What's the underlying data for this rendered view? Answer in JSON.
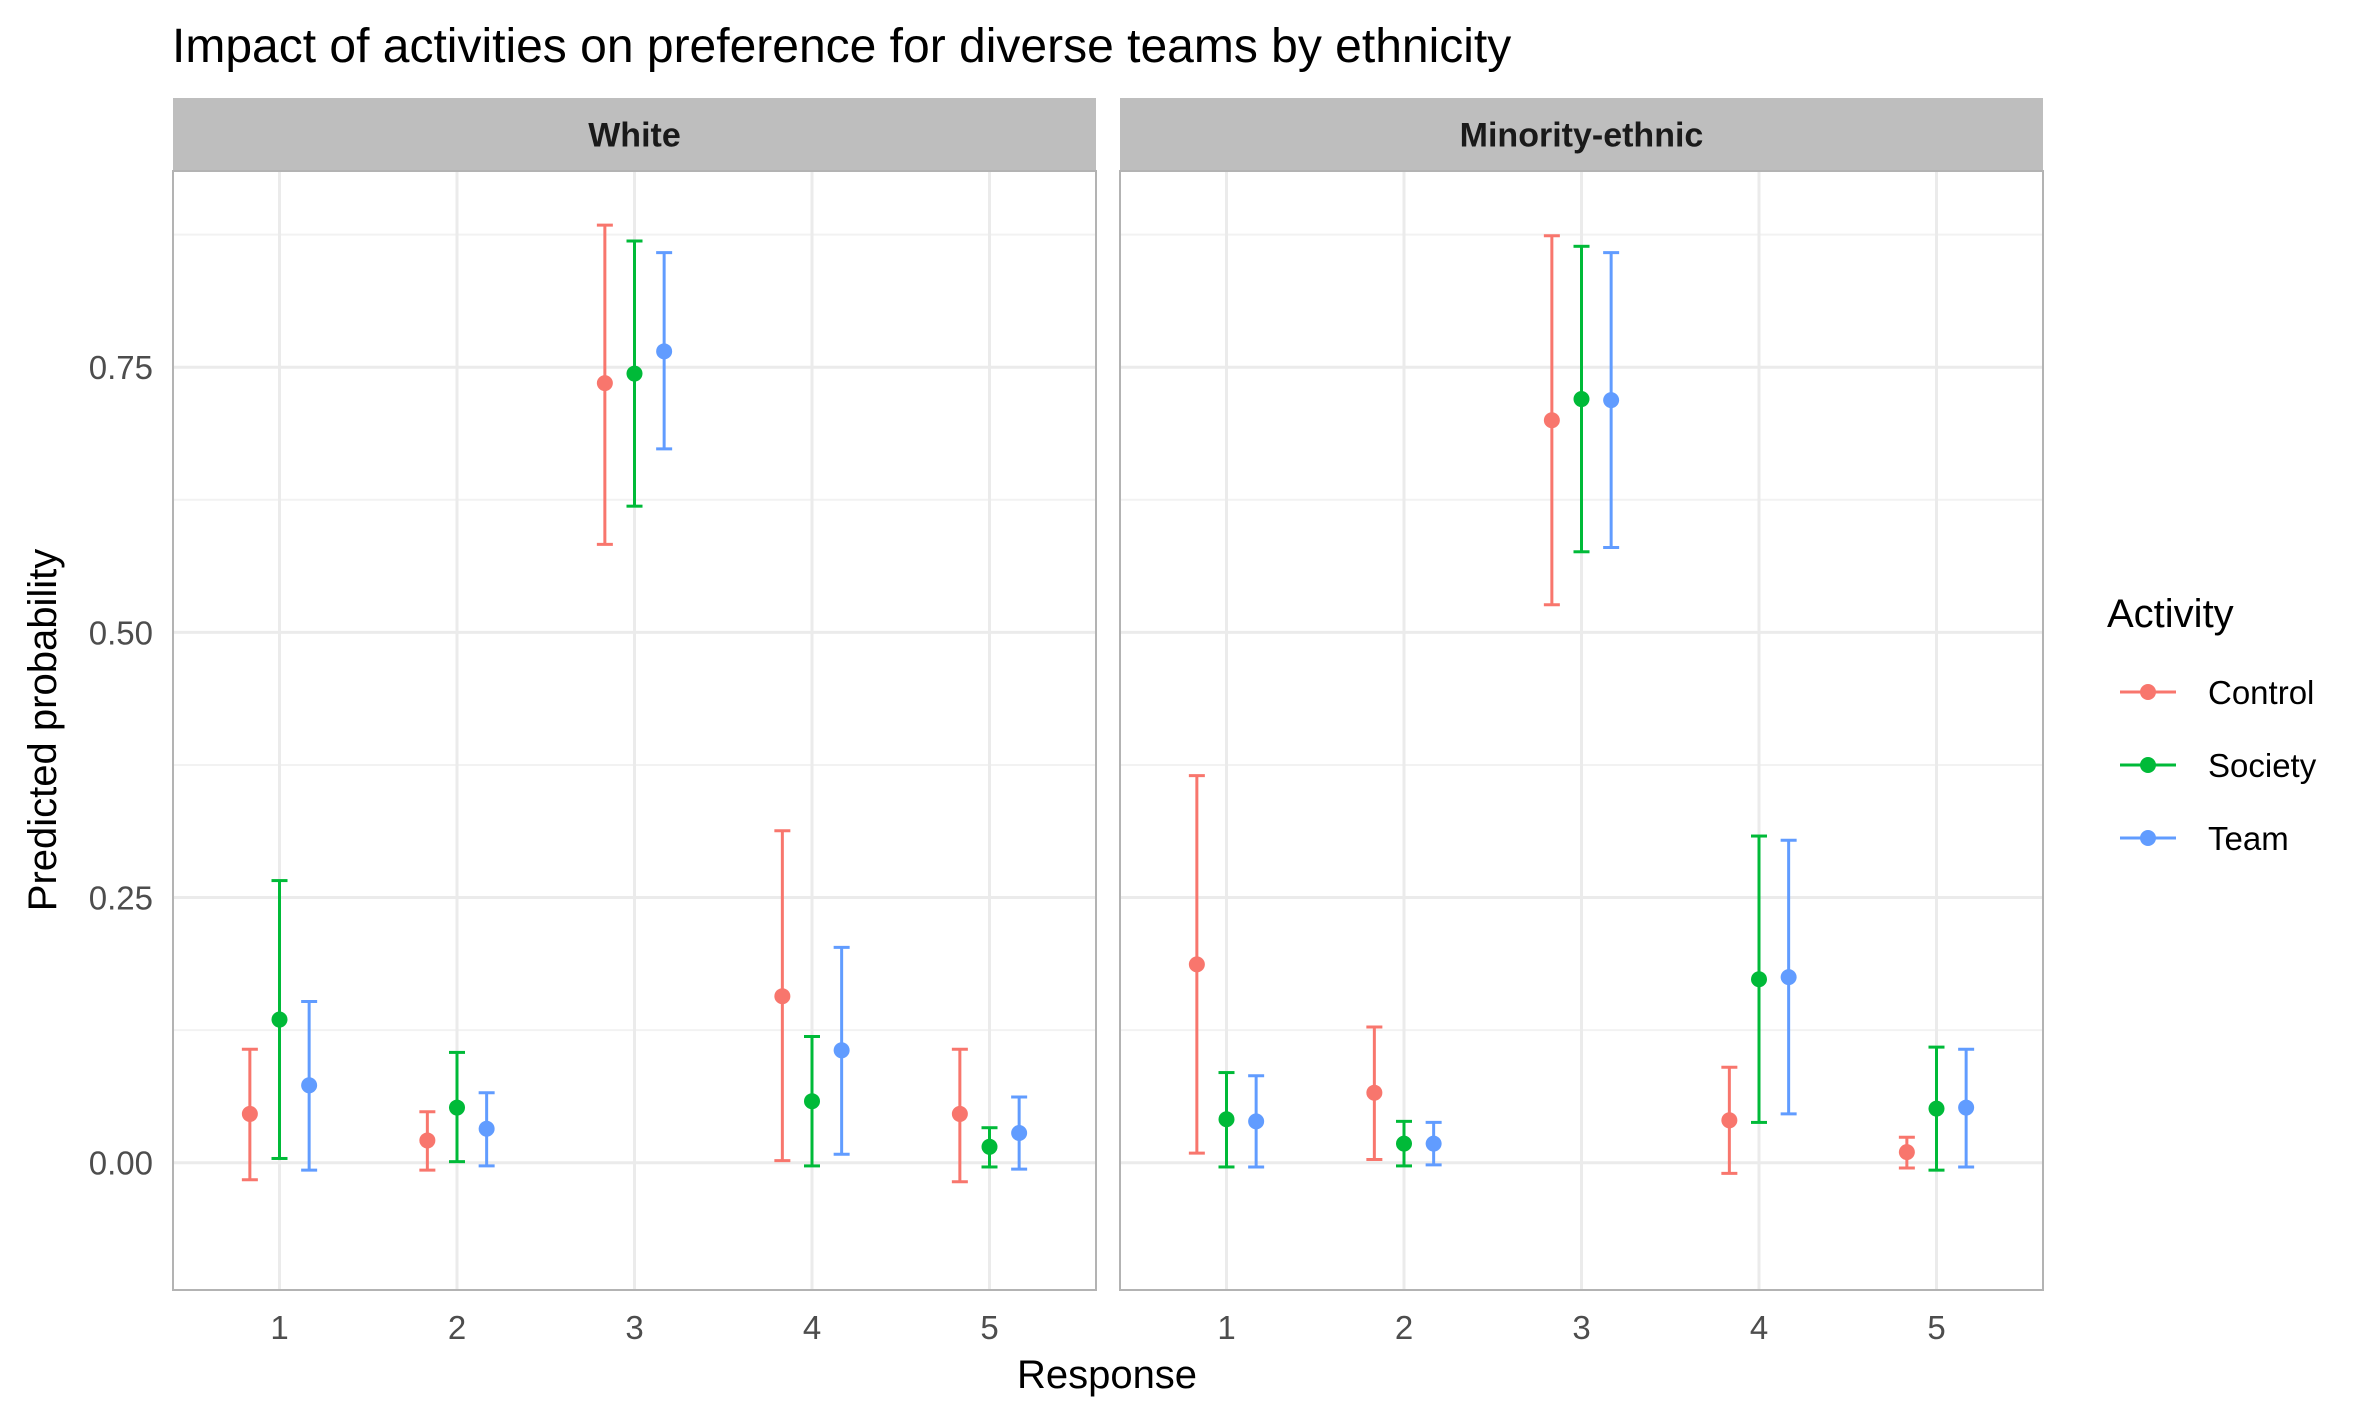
{
  "chart_data": {
    "type": "scatter",
    "title": "Impact of activities on preference for diverse teams by ethnicity",
    "xlabel": "Response",
    "ylabel": "Predicted probability",
    "ylim": [
      -0.12,
      0.935
    ],
    "y_ticks": [
      0.0,
      0.25,
      0.5,
      0.75
    ],
    "y_tick_labels": [
      "0.00",
      "0.25",
      "0.50",
      "0.75"
    ],
    "x_ticks": [
      1,
      2,
      3,
      4,
      5
    ],
    "x_tick_labels": [
      "1",
      "2",
      "3",
      "4",
      "5"
    ],
    "grid": true,
    "error_bars": true,
    "legend": {
      "title": "Activity",
      "position": "right",
      "items": [
        "Control",
        "Society",
        "Team"
      ]
    },
    "colors": {
      "Control": "#F8766D",
      "Society": "#00BA38",
      "Team": "#619CFF"
    },
    "panels": [
      {
        "name": "White",
        "series": [
          {
            "name": "Control",
            "x": [
              1,
              2,
              3,
              4,
              5
            ],
            "y": [
              0.046,
              0.021,
              0.735,
              0.157,
              0.046
            ],
            "low": [
              -0.016,
              -0.007,
              0.583,
              0.002,
              -0.018
            ],
            "high": [
              0.107,
              0.048,
              0.884,
              0.313,
              0.107
            ]
          },
          {
            "name": "Society",
            "x": [
              1,
              2,
              3,
              4,
              5
            ],
            "y": [
              0.135,
              0.052,
              0.744,
              0.058,
              0.015
            ],
            "low": [
              0.004,
              0.001,
              0.619,
              -0.003,
              -0.004
            ],
            "high": [
              0.266,
              0.104,
              0.869,
              0.119,
              0.033
            ]
          },
          {
            "name": "Team",
            "x": [
              1,
              2,
              3,
              4,
              5
            ],
            "y": [
              0.073,
              0.032,
              0.765,
              0.106,
              0.028
            ],
            "low": [
              -0.007,
              -0.003,
              0.673,
              0.008,
              -0.006
            ],
            "high": [
              0.152,
              0.066,
              0.858,
              0.203,
              0.062
            ]
          }
        ]
      },
      {
        "name": "Minority-ethnic",
        "series": [
          {
            "name": "Control",
            "x": [
              1,
              2,
              3,
              4,
              5
            ],
            "y": [
              0.187,
              0.066,
              0.7,
              0.04,
              0.01
            ],
            "low": [
              0.009,
              0.003,
              0.526,
              -0.01,
              -0.005
            ],
            "high": [
              0.365,
              0.128,
              0.874,
              0.09,
              0.024
            ]
          },
          {
            "name": "Society",
            "x": [
              1,
              2,
              3,
              4,
              5
            ],
            "y": [
              0.041,
              0.018,
              0.72,
              0.173,
              0.051
            ],
            "low": [
              -0.004,
              -0.003,
              0.576,
              0.038,
              -0.007
            ],
            "high": [
              0.085,
              0.039,
              0.864,
              0.308,
              0.109
            ]
          },
          {
            "name": "Team",
            "x": [
              1,
              2,
              3,
              4,
              5
            ],
            "y": [
              0.039,
              0.018,
              0.719,
              0.175,
              0.052
            ],
            "low": [
              -0.004,
              -0.002,
              0.58,
              0.046,
              -0.004
            ],
            "high": [
              0.082,
              0.038,
              0.858,
              0.304,
              0.107
            ]
          }
        ]
      }
    ]
  }
}
